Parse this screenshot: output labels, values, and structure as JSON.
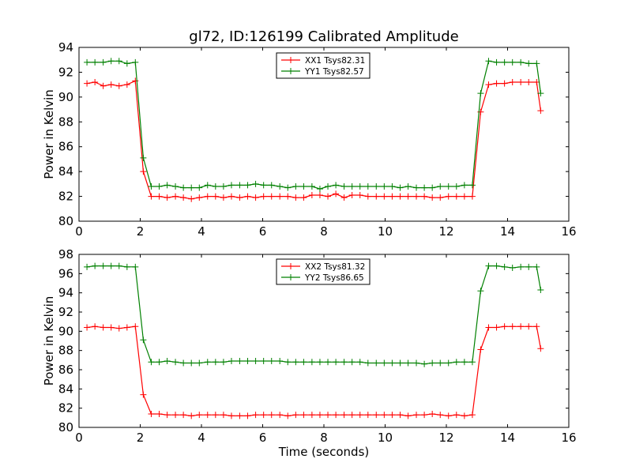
{
  "figure": {
    "title": "gl72, ID:126199 Calibrated Amplitude"
  },
  "chart_data": [
    {
      "type": "line",
      "title": "gl72, ID:126199 Calibrated Amplitude",
      "xlabel": "",
      "ylabel": "Power in Kelvin",
      "xlim": [
        0,
        16
      ],
      "ylim": [
        80,
        94
      ],
      "xticks": [
        "0",
        "2",
        "4",
        "6",
        "8",
        "10",
        "12",
        "14",
        "16"
      ],
      "yticks": [
        "80",
        "82",
        "84",
        "86",
        "88",
        "90",
        "92",
        "94"
      ],
      "legend_position": "top-center",
      "grid": false,
      "series": [
        {
          "name": "XX1 Tsys82.31",
          "color": "#ff0000",
          "x": [
            0.26,
            0.52,
            0.79,
            1.05,
            1.31,
            1.57,
            1.84,
            2.1,
            2.36,
            2.62,
            2.88,
            3.15,
            3.41,
            3.67,
            3.93,
            4.2,
            4.46,
            4.72,
            4.98,
            5.25,
            5.51,
            5.77,
            6.03,
            6.29,
            6.56,
            6.82,
            7.08,
            7.34,
            7.61,
            7.87,
            8.13,
            8.39,
            8.66,
            8.92,
            9.18,
            9.44,
            9.71,
            9.97,
            10.23,
            10.49,
            10.75,
            11.02,
            11.28,
            11.54,
            11.8,
            12.07,
            12.33,
            12.59,
            12.85,
            13.12,
            13.38,
            13.64,
            13.9,
            14.16,
            14.43,
            14.69,
            14.95,
            15.08
          ],
          "y": [
            91.1,
            91.2,
            90.9,
            91.0,
            90.9,
            91.0,
            91.3,
            84.0,
            82.0,
            82.0,
            81.9,
            82.0,
            81.9,
            81.8,
            81.9,
            82.0,
            82.0,
            81.9,
            82.0,
            81.9,
            82.0,
            81.9,
            82.0,
            82.0,
            82.0,
            82.0,
            81.9,
            81.9,
            82.1,
            82.1,
            82.0,
            82.2,
            81.9,
            82.1,
            82.1,
            82.0,
            82.0,
            82.0,
            82.0,
            82.0,
            82.0,
            82.0,
            82.0,
            81.9,
            81.9,
            82.0,
            82.0,
            82.0,
            82.0,
            88.8,
            91.0,
            91.1,
            91.1,
            91.2,
            91.2,
            91.2,
            91.2,
            88.9
          ]
        },
        {
          "name": "YY1 Tsys82.57",
          "color": "#008000",
          "x": [
            0.26,
            0.52,
            0.79,
            1.05,
            1.31,
            1.57,
            1.84,
            2.1,
            2.36,
            2.62,
            2.88,
            3.15,
            3.41,
            3.67,
            3.93,
            4.2,
            4.46,
            4.72,
            4.98,
            5.25,
            5.51,
            5.77,
            6.03,
            6.29,
            6.56,
            6.82,
            7.08,
            7.34,
            7.61,
            7.87,
            8.13,
            8.39,
            8.66,
            8.92,
            9.18,
            9.44,
            9.71,
            9.97,
            10.23,
            10.49,
            10.75,
            11.02,
            11.28,
            11.54,
            11.8,
            12.07,
            12.33,
            12.59,
            12.85,
            13.12,
            13.38,
            13.64,
            13.9,
            14.16,
            14.43,
            14.69,
            14.95,
            15.08
          ],
          "y": [
            92.8,
            92.8,
            92.8,
            92.9,
            92.9,
            92.7,
            92.8,
            85.1,
            82.8,
            82.8,
            82.9,
            82.8,
            82.7,
            82.7,
            82.7,
            82.9,
            82.8,
            82.8,
            82.9,
            82.9,
            82.9,
            83.0,
            82.9,
            82.9,
            82.8,
            82.7,
            82.8,
            82.8,
            82.8,
            82.6,
            82.8,
            82.9,
            82.8,
            82.8,
            82.8,
            82.8,
            82.8,
            82.8,
            82.8,
            82.7,
            82.8,
            82.7,
            82.7,
            82.7,
            82.8,
            82.8,
            82.8,
            82.9,
            82.9,
            90.3,
            92.9,
            92.8,
            92.8,
            92.8,
            92.8,
            92.7,
            92.7,
            90.3
          ]
        }
      ]
    },
    {
      "type": "line",
      "title": "",
      "xlabel": "Time (seconds)",
      "ylabel": "Power in Kelvin",
      "xlim": [
        0,
        16
      ],
      "ylim": [
        80,
        98
      ],
      "xticks": [
        "0",
        "2",
        "4",
        "6",
        "8",
        "10",
        "12",
        "14",
        "16"
      ],
      "yticks": [
        "80",
        "82",
        "84",
        "86",
        "88",
        "90",
        "92",
        "94",
        "96",
        "98"
      ],
      "legend_position": "top-center",
      "grid": false,
      "series": [
        {
          "name": "XX2 Tsys81.32",
          "color": "#ff0000",
          "x": [
            0.26,
            0.52,
            0.79,
            1.05,
            1.31,
            1.57,
            1.84,
            2.1,
            2.36,
            2.62,
            2.88,
            3.15,
            3.41,
            3.67,
            3.93,
            4.2,
            4.46,
            4.72,
            4.98,
            5.25,
            5.51,
            5.77,
            6.03,
            6.29,
            6.56,
            6.82,
            7.08,
            7.34,
            7.61,
            7.87,
            8.13,
            8.39,
            8.66,
            8.92,
            9.18,
            9.44,
            9.71,
            9.97,
            10.23,
            10.49,
            10.75,
            11.02,
            11.28,
            11.54,
            11.8,
            12.07,
            12.33,
            12.59,
            12.85,
            13.12,
            13.38,
            13.64,
            13.9,
            14.16,
            14.43,
            14.69,
            14.95,
            15.08
          ],
          "y": [
            90.4,
            90.5,
            90.4,
            90.4,
            90.3,
            90.4,
            90.5,
            83.4,
            81.4,
            81.4,
            81.3,
            81.3,
            81.3,
            81.2,
            81.3,
            81.3,
            81.3,
            81.3,
            81.2,
            81.2,
            81.2,
            81.3,
            81.3,
            81.3,
            81.3,
            81.2,
            81.3,
            81.3,
            81.3,
            81.3,
            81.3,
            81.3,
            81.3,
            81.3,
            81.3,
            81.3,
            81.3,
            81.3,
            81.3,
            81.3,
            81.2,
            81.3,
            81.3,
            81.4,
            81.3,
            81.2,
            81.3,
            81.2,
            81.3,
            88.1,
            90.4,
            90.4,
            90.5,
            90.5,
            90.5,
            90.5,
            90.5,
            88.2
          ]
        },
        {
          "name": "YY2 Tsys86.65",
          "color": "#008000",
          "x": [
            0.26,
            0.52,
            0.79,
            1.05,
            1.31,
            1.57,
            1.84,
            2.1,
            2.36,
            2.62,
            2.88,
            3.15,
            3.41,
            3.67,
            3.93,
            4.2,
            4.46,
            4.72,
            4.98,
            5.25,
            5.51,
            5.77,
            6.03,
            6.29,
            6.56,
            6.82,
            7.08,
            7.34,
            7.61,
            7.87,
            8.13,
            8.39,
            8.66,
            8.92,
            9.18,
            9.44,
            9.71,
            9.97,
            10.23,
            10.49,
            10.75,
            11.02,
            11.28,
            11.54,
            11.8,
            12.07,
            12.33,
            12.59,
            12.85,
            13.12,
            13.38,
            13.64,
            13.9,
            14.16,
            14.43,
            14.69,
            14.95,
            15.08
          ],
          "y": [
            96.7,
            96.8,
            96.8,
            96.8,
            96.8,
            96.7,
            96.7,
            89.1,
            86.8,
            86.8,
            86.9,
            86.8,
            86.7,
            86.7,
            86.7,
            86.8,
            86.8,
            86.8,
            86.9,
            86.9,
            86.9,
            86.9,
            86.9,
            86.9,
            86.9,
            86.8,
            86.8,
            86.8,
            86.8,
            86.8,
            86.8,
            86.8,
            86.8,
            86.8,
            86.8,
            86.7,
            86.7,
            86.7,
            86.7,
            86.7,
            86.7,
            86.7,
            86.6,
            86.7,
            86.7,
            86.7,
            86.8,
            86.8,
            86.8,
            94.2,
            96.8,
            96.8,
            96.7,
            96.6,
            96.7,
            96.7,
            96.7,
            94.3
          ]
        }
      ]
    }
  ]
}
